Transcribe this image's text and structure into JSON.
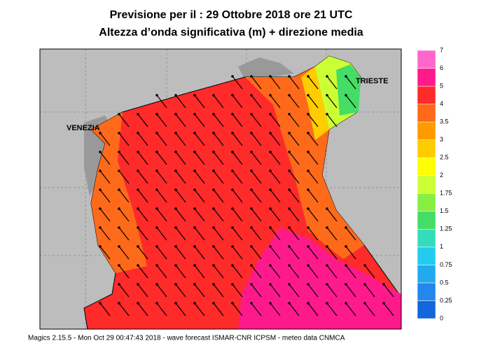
{
  "header": {
    "title": "Previsione per il  :  29  Ottobre  2018   ore 21 UTC",
    "subtitle": "Altezza d’onda significativa (m) + direzione media"
  },
  "map": {
    "labels": [
      "VENEZIA",
      "TRIESTE"
    ]
  },
  "colorbar": {
    "ticks": [
      0,
      0.25,
      0.5,
      0.75,
      1,
      1.25,
      1.5,
      1.75,
      2,
      2.5,
      3,
      3.5,
      4,
      5,
      6,
      7
    ],
    "colors": [
      "#1466dc",
      "#2288ee",
      "#22aaee",
      "#22ccee",
      "#33ddbb",
      "#44dd66",
      "#88ee44",
      "#ccff33",
      "#ffff00",
      "#ffcc00",
      "#ff9a00",
      "#ff6a1a",
      "#ff2a2a",
      "#ff1a8c",
      "#ff66cc"
    ]
  },
  "footer": "Magics 2.15.5 - Mon Oct 29 00:47:43 2018 - wave forecast  ISMAR-CNR  ICPSM - meteo data  CNMCA"
}
